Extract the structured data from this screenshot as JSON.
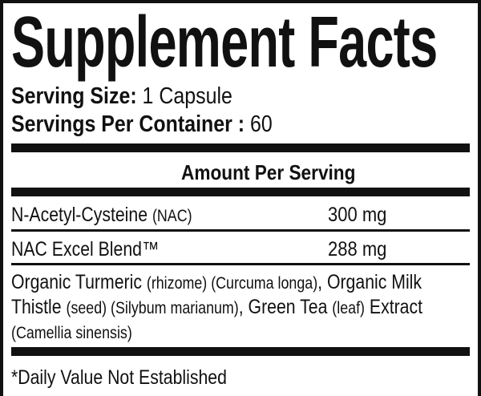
{
  "title": "Supplement Facts",
  "serving_size": {
    "label": "Serving Size:",
    "value": "1 Capsule"
  },
  "servings_per_container": {
    "label": "Servings Per Container :",
    "value": "60"
  },
  "amount_header": "Amount Per Serving",
  "ingredients": [
    {
      "name": "N-Acetyl-Cysteine",
      "note": "(NAC)",
      "amount": "300 mg"
    },
    {
      "name": "NAC Excel Blend™",
      "note": "",
      "amount": "288 mg"
    }
  ],
  "blend_lines": [
    [
      {
        "t": "Organic Turmeric ",
        "s": false
      },
      {
        "t": "(rhizome) (Curcuma longa)",
        "s": true
      },
      {
        "t": ", Organic Milk",
        "s": false
      }
    ],
    [
      {
        "t": "Thistle ",
        "s": false
      },
      {
        "t": "(seed) (Silybum marianum)",
        "s": true
      },
      {
        "t": ", Green Tea ",
        "s": false
      },
      {
        "t": "(leaf)",
        "s": true
      },
      {
        "t": " Extract",
        "s": false
      }
    ],
    [
      {
        "t": "(Camellia sinensis)",
        "s": true
      }
    ]
  ],
  "footnote": "*Daily Value Not Established"
}
